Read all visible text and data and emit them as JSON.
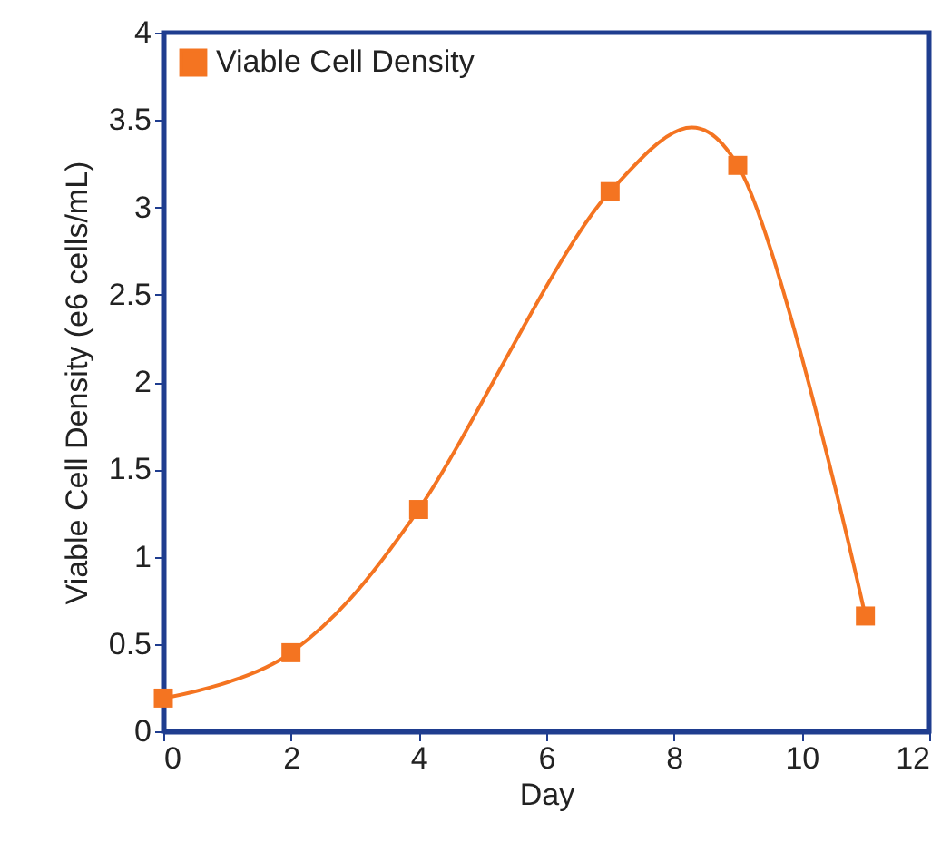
{
  "chart_data": {
    "type": "line",
    "xlabel": "Day",
    "ylabel": "Viable Cell Density (e6 cells/mL)",
    "x": [
      0,
      2,
      4,
      7,
      9,
      11
    ],
    "series": [
      {
        "name": "Viable Cell Density",
        "color": "#f47421",
        "values": [
          0.19,
          0.45,
          1.27,
          3.09,
          3.24,
          0.66
        ]
      }
    ],
    "xlim": [
      0,
      12
    ],
    "xticks": [
      0,
      2,
      4,
      6,
      8,
      10,
      12
    ],
    "ylim": [
      0,
      4
    ],
    "yticks": [
      0,
      0.5,
      1,
      1.5,
      2,
      2.5,
      3,
      3.5,
      4
    ],
    "grid": false,
    "legend": "top left",
    "marker": "square",
    "line_style": "solid"
  }
}
